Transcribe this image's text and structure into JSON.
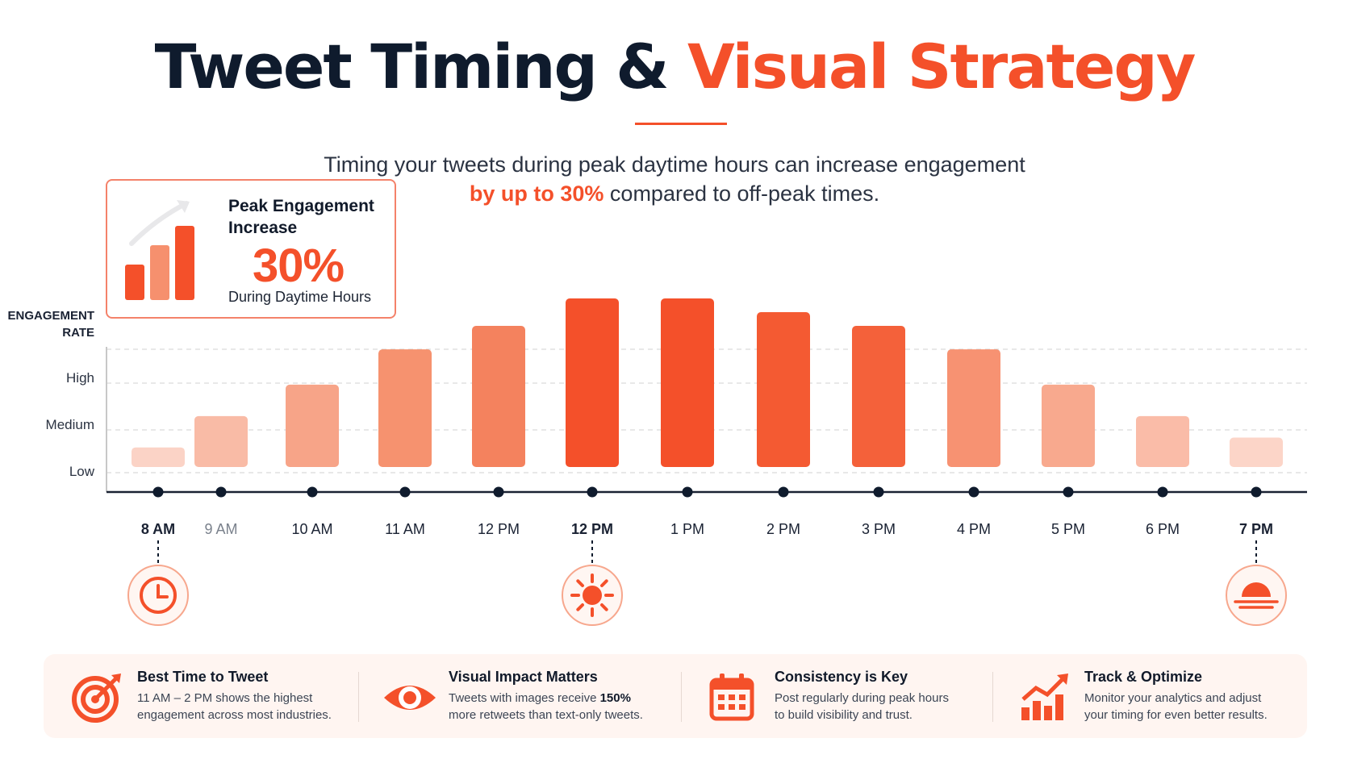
{
  "header": {
    "title_main": "Tweet Timing & ",
    "title_accent": "Visual Strategy",
    "subtitle_line1": "Timing your tweets during peak daytime hours can increase engagement",
    "subtitle_highlight": "by up to 30%",
    "subtitle_line2_rest": " compared to off-peak times."
  },
  "peak_card": {
    "title": "Peak Engagement Increase",
    "value": "30%",
    "subtitle": "During Daytime Hours"
  },
  "chart_data": {
    "type": "bar",
    "ylabel_line1": "ENGAGEMENT",
    "ylabel_line2": "RATE",
    "y_ticks": [
      "Low",
      "Medium",
      "High"
    ],
    "y_tick_values": [
      1,
      2,
      3
    ],
    "ylim": [
      0,
      4.3
    ],
    "grid": true,
    "categories": [
      "8 AM",
      "9 AM",
      "10 AM",
      "11 AM",
      "12 PM",
      "12 PM",
      "1 PM",
      "2 PM",
      "3 PM",
      "4 PM",
      "5 PM",
      "6 PM",
      "7 PM"
    ],
    "values": [
      0.5,
      1.3,
      2.1,
      3.0,
      3.6,
      4.3,
      4.3,
      3.95,
      3.6,
      3.0,
      2.1,
      1.3,
      0.75
    ],
    "bar_colors": [
      "#fbd3c6",
      "#f9bba6",
      "#f7a488",
      "#f6926f",
      "#f4825e",
      "#f4502a",
      "#f4502a",
      "#f45a32",
      "#f4613a",
      "#f79272",
      "#f8a98e",
      "#fabca8",
      "#fcd5c8"
    ],
    "annotated_categories": [
      {
        "index": 0,
        "icon": "clock-icon"
      },
      {
        "index": 5,
        "icon": "sun-icon"
      },
      {
        "index": 12,
        "icon": "sunset-icon"
      }
    ]
  },
  "colors": {
    "accent": "#f4502a",
    "dark": "#0f1b2d",
    "axis": "#1a2233",
    "grid": "#d9d9d9"
  },
  "info": [
    {
      "icon": "target-icon",
      "title": "Best Time to Tweet",
      "desc1": "11 AM – 2 PM shows the highest",
      "desc2": "engagement across most industries."
    },
    {
      "icon": "eye-icon",
      "title": "Visual Impact Matters",
      "desc1_pre": "Tweets with images receive ",
      "desc1_bold": "150%",
      "desc2": "more retweets than text-only tweets."
    },
    {
      "icon": "calendar-icon",
      "title": "Consistency is Key",
      "desc1": "Post regularly during peak hours",
      "desc2": "to build visibility and trust."
    },
    {
      "icon": "trend-chart-icon",
      "title": "Track & Optimize",
      "desc1": "Monitor your analytics and adjust",
      "desc2": "your timing for even better results."
    }
  ]
}
